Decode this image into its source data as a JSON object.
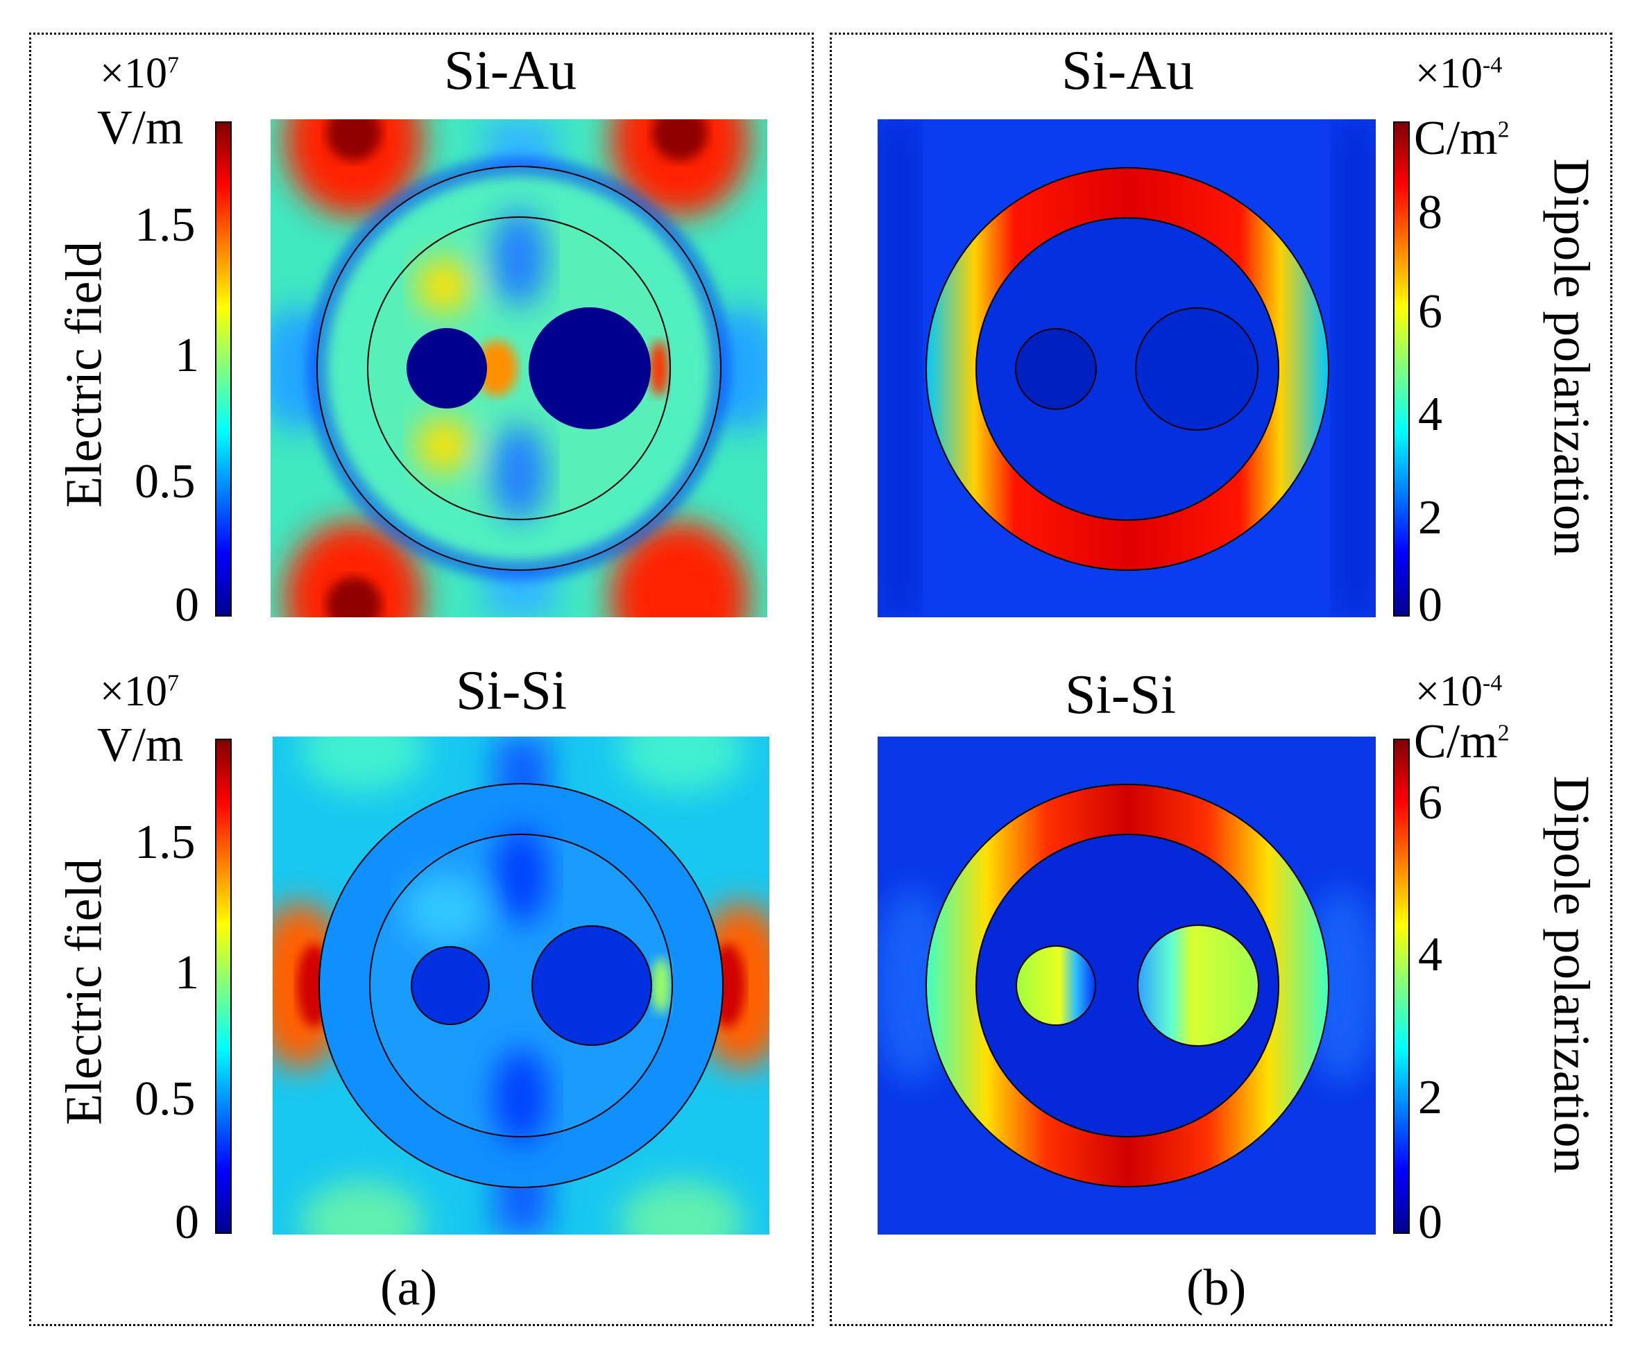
{
  "chart_data": [
    {
      "type": "heatmap",
      "panel": "(a)",
      "title": "Si-Au",
      "colorbar": {
        "label": "Electric field",
        "unit": "V/m",
        "multiplier": "×10",
        "exponent": "7",
        "ticks": [
          "0",
          "0.5",
          "1",
          "1.5"
        ],
        "range": [
          0,
          1.9
        ],
        "colormap": "jet"
      }
    },
    {
      "type": "heatmap",
      "panel": "(a)",
      "title": "Si-Si",
      "colorbar": {
        "label": "Electric field",
        "unit": "V/m",
        "multiplier": "×10",
        "exponent": "7",
        "ticks": [
          "0",
          "0.5",
          "1",
          "1.5"
        ],
        "range": [
          0,
          1.9
        ],
        "colormap": "jet"
      }
    },
    {
      "type": "heatmap",
      "panel": "(b)",
      "title": "Si-Au",
      "colorbar": {
        "label": "Dipole polarization",
        "unit": "C/m",
        "unit_exponent": "2",
        "multiplier": "×10",
        "exponent": "-4",
        "ticks": [
          "0",
          "2",
          "4",
          "6",
          "8"
        ],
        "range": [
          0,
          9.5
        ],
        "colormap": "jet"
      }
    },
    {
      "type": "heatmap",
      "panel": "(b)",
      "title": "Si-Si",
      "colorbar": {
        "label": "Dipole polarization",
        "unit": "C/m",
        "unit_exponent": "2",
        "multiplier": "×10",
        "exponent": "-4",
        "ticks": [
          "0",
          "2",
          "4",
          "6"
        ],
        "range": [
          0,
          7
        ],
        "colormap": "jet"
      }
    }
  ],
  "captions": {
    "left": "(a)",
    "right": "(b)"
  }
}
